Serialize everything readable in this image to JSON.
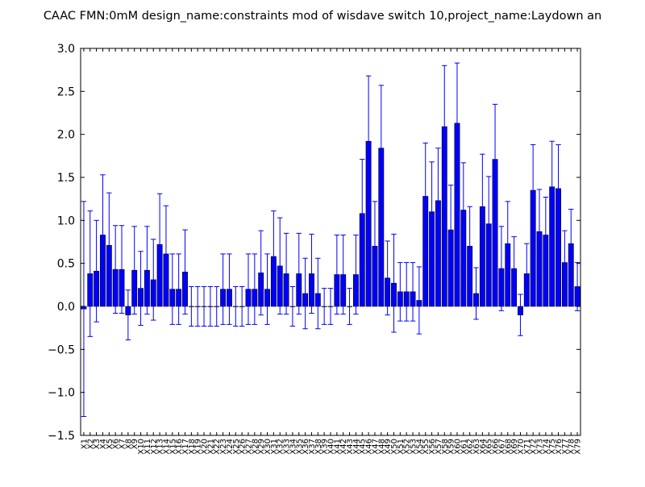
{
  "chart_data": {
    "type": "bar",
    "title": "CAAC  FMN:0mM  design_name:constraints mod of wisdave switch 10,project_name:Laydown an",
    "xlabel": "",
    "ylabel": "",
    "ylim": [
      -1.5,
      3.0
    ],
    "yticks": [
      "−1.5",
      "−1.0",
      "−0.5",
      "0.0",
      "0.5",
      "1.0",
      "1.5",
      "2.0",
      "2.5",
      "3.0"
    ],
    "grid": false,
    "colors": {
      "bar": "#0000ff",
      "bar_edge": "#000000",
      "error": "#0000ff",
      "axes": "#000000"
    },
    "categories": [
      "X1",
      "X2",
      "X3",
      "X4",
      "X5",
      "X6",
      "X7",
      "X8",
      "X9",
      "X10",
      "X11",
      "X12",
      "X13",
      "X14",
      "X15",
      "X16",
      "X17",
      "X18",
      "X19",
      "X20",
      "X21",
      "X22",
      "X23",
      "X24",
      "X25",
      "X26",
      "X27",
      "X28",
      "X29",
      "X30",
      "X31",
      "X32",
      "X33",
      "X34",
      "X35",
      "X36",
      "X37",
      "X38",
      "X39",
      "X40",
      "X41",
      "X42",
      "X43",
      "X44",
      "X45",
      "X46",
      "X47",
      "X48",
      "X49",
      "X50",
      "X51",
      "X52",
      "X53",
      "X54",
      "X55",
      "X56",
      "X57",
      "X58",
      "X59",
      "X60",
      "X61",
      "X62",
      "X63",
      "X64",
      "X65",
      "X66",
      "X67",
      "X68",
      "X69",
      "X70",
      "X71",
      "X72",
      "X73",
      "X74",
      "X75",
      "X76",
      "X77",
      "X78",
      "X79"
    ],
    "values": [
      -0.03,
      0.38,
      0.41,
      0.83,
      0.71,
      0.43,
      0.43,
      -0.1,
      0.42,
      0.21,
      0.42,
      0.31,
      0.72,
      0.61,
      0.2,
      0.2,
      0.4,
      0.0,
      0.0,
      0.0,
      0.0,
      0.0,
      0.2,
      0.2,
      0.0,
      0.0,
      0.2,
      0.2,
      0.39,
      0.2,
      0.58,
      0.47,
      0.38,
      0.0,
      0.38,
      0.15,
      0.38,
      0.15,
      0.0,
      0.0,
      0.37,
      0.37,
      0.0,
      0.37,
      1.08,
      1.92,
      0.7,
      1.84,
      0.33,
      0.27,
      0.17,
      0.17,
      0.17,
      0.07,
      1.28,
      1.1,
      1.23,
      2.09,
      0.89,
      2.13,
      1.12,
      0.7,
      0.15,
      1.16,
      0.96,
      1.71,
      0.44,
      0.73,
      0.44,
      -0.1,
      0.38,
      1.35,
      0.87,
      0.83,
      1.39,
      1.37,
      0.51,
      0.73,
      0.23
    ],
    "errors": [
      1.25,
      0.73,
      0.59,
      0.7,
      0.61,
      0.51,
      0.51,
      0.29,
      0.51,
      0.43,
      0.51,
      0.47,
      0.59,
      0.56,
      0.41,
      0.41,
      0.49,
      0.23,
      0.23,
      0.23,
      0.23,
      0.23,
      0.41,
      0.41,
      0.23,
      0.23,
      0.41,
      0.41,
      0.49,
      0.41,
      0.53,
      0.56,
      0.47,
      0.23,
      0.47,
      0.41,
      0.46,
      0.41,
      0.21,
      0.21,
      0.46,
      0.46,
      0.21,
      0.46,
      0.63,
      0.76,
      0.52,
      0.73,
      0.43,
      0.57,
      0.34,
      0.34,
      0.34,
      0.39,
      0.62,
      0.58,
      0.61,
      0.71,
      0.52,
      0.7,
      0.55,
      0.46,
      0.3,
      0.61,
      0.55,
      0.64,
      0.49,
      0.49,
      0.37,
      0.24,
      0.35,
      0.53,
      0.49,
      0.44,
      0.53,
      0.51,
      0.37,
      0.4,
      0.28
    ]
  }
}
